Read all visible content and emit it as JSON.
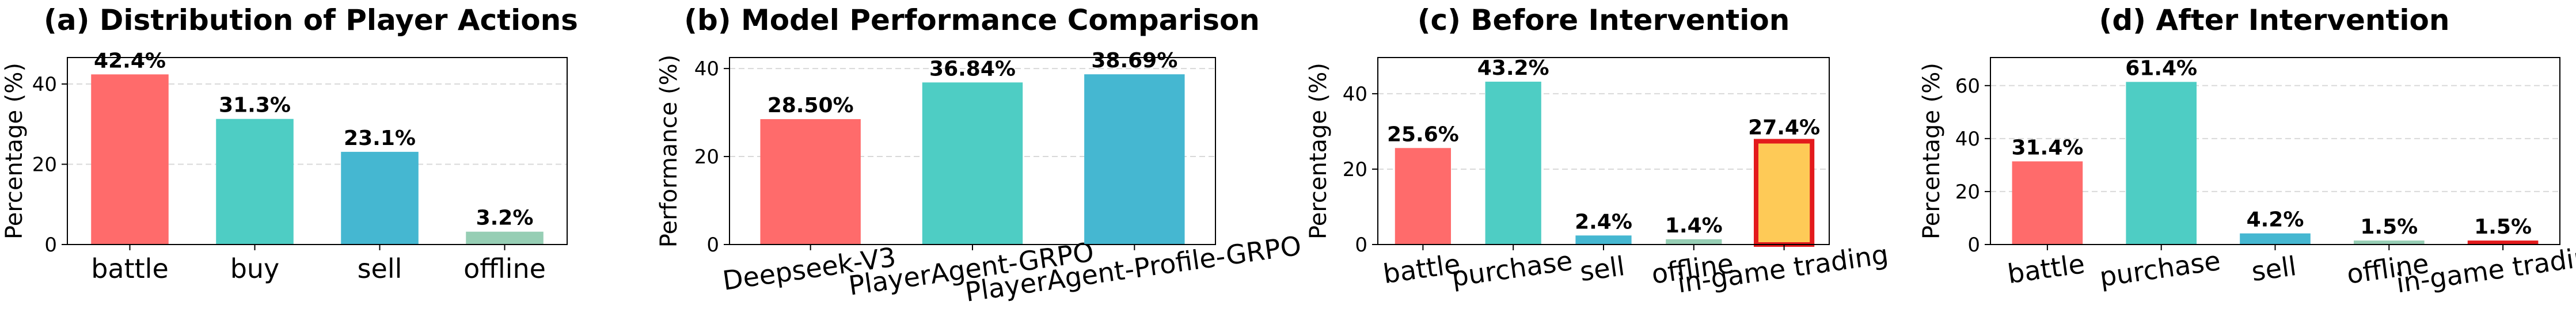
{
  "chart_data": [
    {
      "type": "bar",
      "title": "(a) Distribution of Player Actions",
      "ylabel": "Percentage (%)",
      "xlabel": "",
      "ylim": [
        0,
        46.6
      ],
      "yticks": [
        0,
        20,
        40
      ],
      "grid": "horizontal-dashed",
      "xtick_rotation": 0,
      "categories": [
        "battle",
        "buy",
        "sell",
        "offline"
      ],
      "values": [
        42.4,
        31.3,
        23.1,
        3.2
      ],
      "data_labels": [
        "42.4%",
        "31.3%",
        "23.1%",
        "3.2%"
      ],
      "colors": [
        "#FF6B6B",
        "#4ECDC4",
        "#45B7D1",
        "#96CEB4"
      ],
      "highlight": []
    },
    {
      "type": "bar",
      "title": "(b) Model Performance Comparison",
      "ylabel": "Performance (%)",
      "xlabel": "",
      "ylim": [
        0,
        42.5
      ],
      "yticks": [
        0,
        20,
        40
      ],
      "grid": "horizontal-dashed",
      "xtick_rotation": -8,
      "categories": [
        "Deepseek-V3",
        "PlayerAgent-GRPO",
        "PlayerAgent-Profile-GRPO"
      ],
      "values": [
        28.5,
        36.84,
        38.69
      ],
      "data_labels": [
        "28.50%",
        "36.84%",
        "38.69%"
      ],
      "colors": [
        "#FF6B6B",
        "#4ECDC4",
        "#45B7D1"
      ],
      "highlight": []
    },
    {
      "type": "bar",
      "title": "(c) Before Intervention",
      "ylabel": "Percentage (%)",
      "xlabel": "",
      "ylim": [
        0,
        49.6
      ],
      "yticks": [
        0,
        20,
        40
      ],
      "grid": "horizontal-dashed",
      "xtick_rotation": -8,
      "categories": [
        "battle",
        "purchase",
        "sell",
        "offline",
        "in-game trading"
      ],
      "values": [
        25.6,
        43.2,
        2.4,
        1.4,
        27.4
      ],
      "data_labels": [
        "25.6%",
        "43.2%",
        "2.4%",
        "1.4%",
        "27.4%"
      ],
      "colors": [
        "#FF6B6B",
        "#4ECDC4",
        "#45B7D1",
        "#96CEB4",
        "#FECA57"
      ],
      "highlight": [
        4
      ],
      "highlight_color": "#E31A1C"
    },
    {
      "type": "bar",
      "title": "(d) After Intervention",
      "ylabel": "Percentage (%)",
      "xlabel": "",
      "ylim": [
        0,
        70.6
      ],
      "yticks": [
        0,
        20,
        40,
        60
      ],
      "grid": "horizontal-dashed",
      "xtick_rotation": -8,
      "categories": [
        "battle",
        "purchase",
        "sell",
        "offline",
        "in-game trading"
      ],
      "values": [
        31.4,
        61.4,
        4.2,
        1.5,
        1.5
      ],
      "data_labels": [
        "31.4%",
        "61.4%",
        "4.2%",
        "1.5%",
        "1.5%"
      ],
      "colors": [
        "#FF6B6B",
        "#4ECDC4",
        "#45B7D1",
        "#96CEB4",
        "#E31A1C"
      ],
      "highlight": []
    }
  ]
}
